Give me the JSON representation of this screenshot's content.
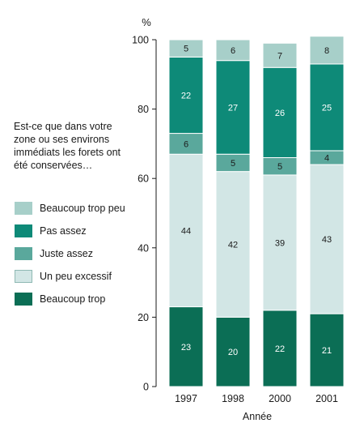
{
  "chart_data": {
    "type": "bar",
    "stacked": true,
    "categories": [
      "1997",
      "1998",
      "2000",
      "2001"
    ],
    "series": [
      {
        "name": "Beaucoup trop",
        "values": [
          23,
          20,
          22,
          21
        ],
        "color": "#0b6e55",
        "label_color": "#ffffff"
      },
      {
        "name": "Un peu excessif",
        "values": [
          44,
          42,
          39,
          43
        ],
        "color": "#d2e6e5",
        "label_color": "#1a1a1a"
      },
      {
        "name": "Juste assez",
        "values": [
          6,
          5,
          5,
          4
        ],
        "color": "#5aa89c",
        "label_color": "#1a1a1a"
      },
      {
        "name": "Pas assez",
        "values": [
          22,
          27,
          26,
          25
        ],
        "color": "#0e8a78",
        "label_color": "#ffffff"
      },
      {
        "name": "Beaucoup trop peu",
        "values": [
          5,
          6,
          7,
          8
        ],
        "color": "#a7cfc9",
        "label_color": "#1a1a1a"
      }
    ],
    "legend_order": [
      "Beaucoup trop peu",
      "Pas assez",
      "Juste assez",
      "Un peu excessif",
      "Beaucoup trop"
    ],
    "ylim": [
      0,
      100
    ],
    "yticks": [
      0,
      20,
      40,
      60,
      80,
      100
    ],
    "ylabel": "%",
    "xlabel": "Année",
    "grid": false,
    "legend_position": "left",
    "legend_title": "Est-ce que dans votre zone ou ses environs immédiats les forets ont été conservées…"
  }
}
